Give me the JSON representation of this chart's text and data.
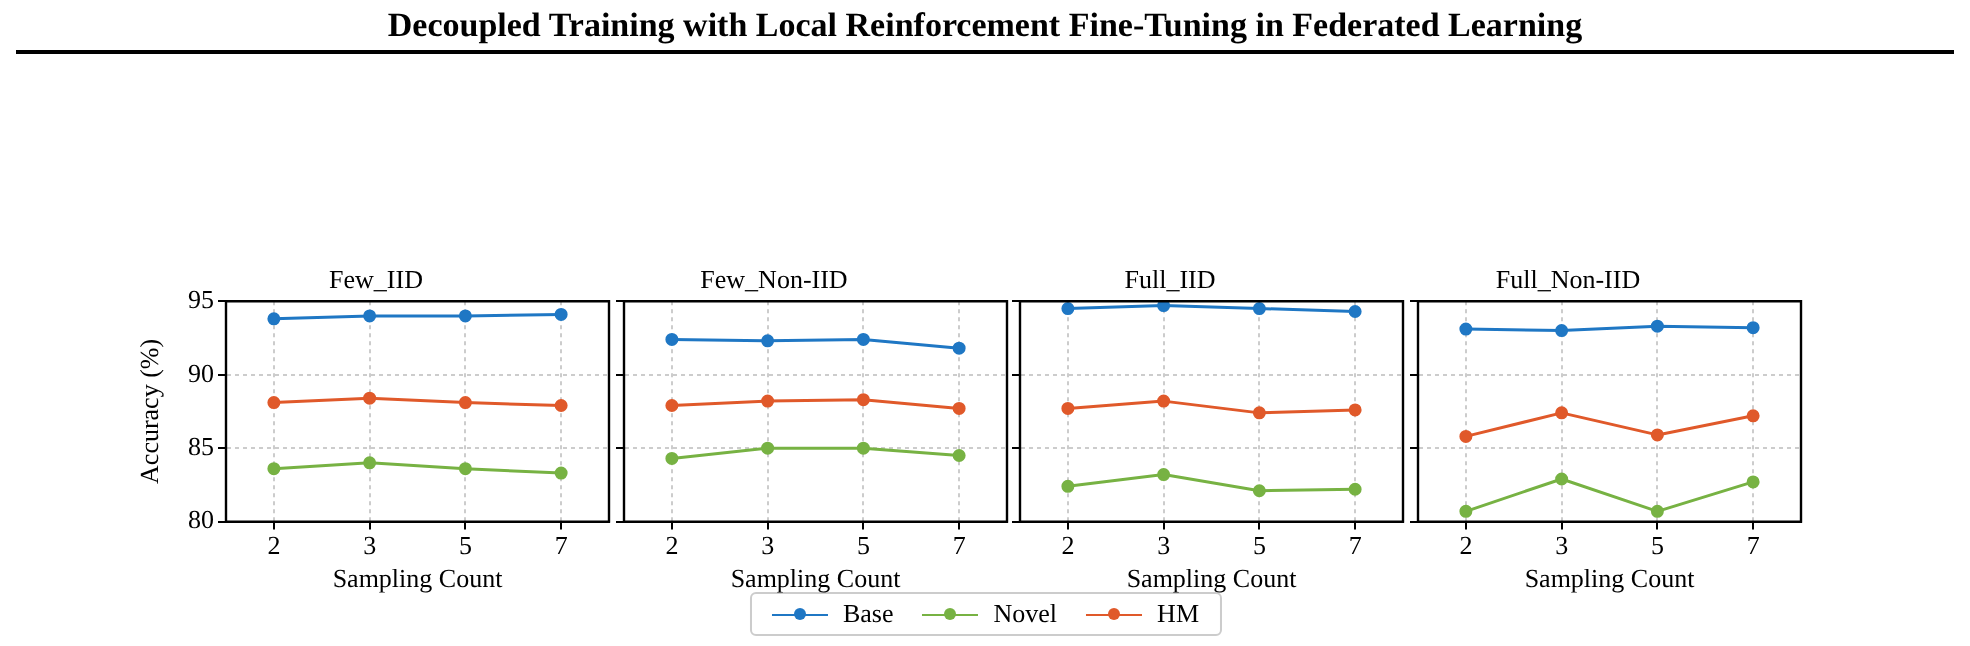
{
  "chart_data": [
    {
      "type": "other",
      "title": "Decoupled Training with Local Reinforcement Fine-Tuning in Federated Learning"
    },
    {
      "type": "line",
      "title": "Few_IID",
      "xlabel": "Sampling Count",
      "ylabel": "Accuracy (%)",
      "categories": [
        "2",
        "3",
        "5",
        "7"
      ],
      "ylim": [
        80,
        95
      ],
      "yticks": [
        80,
        85,
        90,
        95
      ],
      "grid": true,
      "marker": "circle",
      "legend": "bottom",
      "series": [
        {
          "name": "Base",
          "color": "#1f77c4",
          "values": [
            93.8,
            94.0,
            94.0,
            94.1
          ]
        },
        {
          "name": "Novel",
          "color": "#77b243",
          "values": [
            83.6,
            84.0,
            83.6,
            83.3
          ]
        },
        {
          "name": "HM",
          "color": "#e0592a",
          "values": [
            88.1,
            88.4,
            88.1,
            87.9
          ]
        }
      ]
    },
    {
      "type": "line",
      "title": "Few_Non-IID",
      "xlabel": "Sampling Count",
      "categories": [
        "2",
        "3",
        "5",
        "7"
      ],
      "ylim": [
        80,
        95
      ],
      "yticks": [
        80,
        85,
        90,
        95
      ],
      "grid": true,
      "marker": "circle",
      "tick_labels": "x",
      "series": [
        {
          "color": "#1f77c4",
          "values": [
            92.4,
            92.3,
            92.4,
            91.8
          ]
        },
        {
          "color": "#77b243",
          "values": [
            84.3,
            85.0,
            85.0,
            84.5
          ]
        },
        {
          "color": "#e0592a",
          "values": [
            87.9,
            88.2,
            88.3,
            87.7
          ]
        }
      ]
    },
    {
      "type": "line",
      "title": "Full_IID",
      "xlabel": "Sampling Count",
      "categories": [
        "2",
        "3",
        "5",
        "7"
      ],
      "ylim": [
        80,
        95
      ],
      "yticks": [
        80,
        85,
        90,
        95
      ],
      "grid": true,
      "marker": "circle",
      "tick_labels": "x",
      "series": [
        {
          "color": "#1f77c4",
          "values": [
            94.5,
            94.7,
            94.5,
            94.3
          ]
        },
        {
          "color": "#77b243",
          "values": [
            82.4,
            83.2,
            82.1,
            82.2
          ]
        },
        {
          "color": "#e0592a",
          "values": [
            87.7,
            88.2,
            87.4,
            87.6
          ]
        }
      ]
    },
    {
      "type": "line",
      "title": "Full_Non-IID",
      "xlabel": "Sampling Count",
      "categories": [
        "2",
        "3",
        "5",
        "7"
      ],
      "ylim": [
        80,
        95
      ],
      "yticks": [
        80,
        85,
        90,
        95
      ],
      "grid": true,
      "marker": "circle",
      "tick_labels": "x",
      "series": [
        {
          "color": "#1f77c4",
          "values": [
            93.1,
            93.0,
            93.3,
            93.2
          ]
        },
        {
          "color": "#77b243",
          "values": [
            80.7,
            82.9,
            80.7,
            82.7
          ]
        },
        {
          "color": "#e0592a",
          "values": [
            85.8,
            87.4,
            85.9,
            87.2
          ]
        }
      ]
    }
  ]
}
